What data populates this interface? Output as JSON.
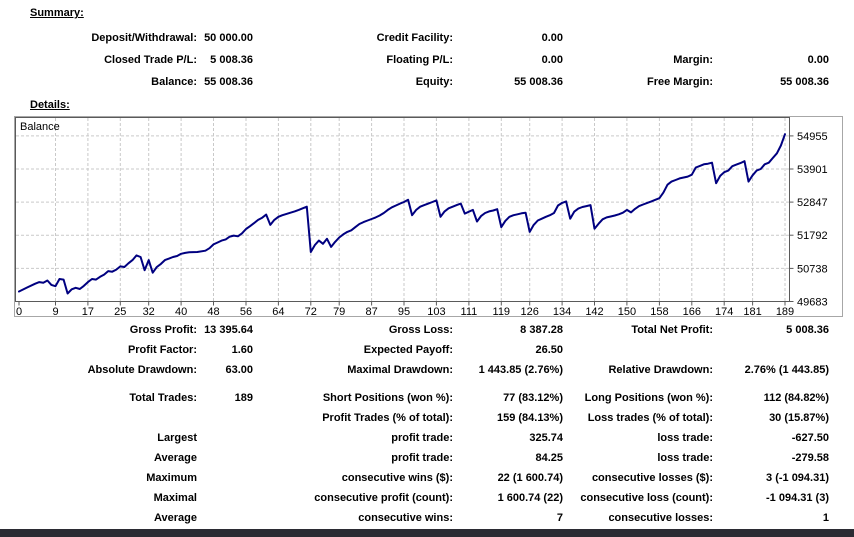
{
  "summary": {
    "heading": "Summary:",
    "rows": [
      [
        "Deposit/Withdrawal:",
        "50 000.00",
        "Credit Facility:",
        "0.00",
        "",
        ""
      ],
      [
        "Closed Trade P/L:",
        "5 008.36",
        "Floating P/L:",
        "0.00",
        "Margin:",
        "0.00"
      ],
      [
        "Balance:",
        "55 008.36",
        "Equity:",
        "55 008.36",
        "Free Margin:",
        "55 008.36"
      ]
    ]
  },
  "details": {
    "heading": "Details:",
    "spacer_after_row_index": 2,
    "rows": [
      [
        "Gross Profit:",
        "13 395.64",
        "Gross Loss:",
        "8 387.28",
        "Total Net Profit:",
        "5 008.36"
      ],
      [
        "Profit Factor:",
        "1.60",
        "Expected Payoff:",
        "26.50",
        "",
        ""
      ],
      [
        "Absolute Drawdown:",
        "63.00",
        "Maximal Drawdown:",
        "1 443.85 (2.76%)",
        "Relative Drawdown:",
        "2.76% (1 443.85)"
      ],
      [
        "Total Trades:",
        "189",
        "Short Positions (won %):",
        "77 (83.12%)",
        "Long Positions (won %):",
        "112 (84.82%)"
      ],
      [
        "",
        "",
        "Profit Trades (% of total):",
        "159 (84.13%)",
        "Loss trades (% of total):",
        "30 (15.87%)"
      ],
      [
        "Largest",
        "",
        "profit trade:",
        "325.74",
        "loss trade:",
        "-627.50"
      ],
      [
        "Average",
        "",
        "profit trade:",
        "84.25",
        "loss trade:",
        "-279.58"
      ],
      [
        "Maximum",
        "",
        "consecutive wins ($):",
        "22 (1 600.74)",
        "consecutive losses ($):",
        "3 (-1 094.31)"
      ],
      [
        "Maximal",
        "",
        "consecutive profit (count):",
        "1 600.74 (22)",
        "consecutive loss (count):",
        "-1 094.31 (3)"
      ],
      [
        "Average",
        "",
        "consecutive wins:",
        "7",
        "consecutive losses:",
        "1"
      ]
    ]
  },
  "chart_data": {
    "type": "line",
    "title": "Balance",
    "xlabel": "",
    "ylabel": "",
    "grid": "dashed",
    "legend_position": "none",
    "line_color": "#000080",
    "xlim": [
      0,
      189
    ],
    "ylim": [
      49683,
      55540
    ],
    "x_ticks": [
      0,
      9,
      17,
      25,
      32,
      40,
      48,
      56,
      64,
      72,
      79,
      87,
      95,
      103,
      111,
      119,
      126,
      134,
      142,
      150,
      158,
      166,
      174,
      181,
      189
    ],
    "y_ticks": [
      49683,
      50738,
      51792,
      52847,
      53901,
      54955
    ],
    "series": [
      {
        "name": "Balance",
        "points": [
          [
            0,
            50000
          ],
          [
            2,
            50130
          ],
          [
            4,
            50250
          ],
          [
            5,
            50300
          ],
          [
            6,
            50280
          ],
          [
            7,
            50350
          ],
          [
            8,
            50210
          ],
          [
            9,
            50170
          ],
          [
            10,
            50400
          ],
          [
            11,
            50380
          ],
          [
            12,
            49937
          ],
          [
            13,
            50070
          ],
          [
            14,
            50120
          ],
          [
            15,
            50080
          ],
          [
            16,
            50180
          ],
          [
            17,
            50300
          ],
          [
            18,
            50400
          ],
          [
            19,
            50380
          ],
          [
            20,
            50470
          ],
          [
            21,
            50540
          ],
          [
            22,
            50650
          ],
          [
            23,
            50630
          ],
          [
            24,
            50700
          ],
          [
            25,
            50800
          ],
          [
            26,
            50780
          ],
          [
            27,
            50900
          ],
          [
            28,
            51000
          ],
          [
            29,
            51150
          ],
          [
            30,
            51100
          ],
          [
            31,
            50680
          ],
          [
            32,
            51000
          ],
          [
            33,
            50600
          ],
          [
            34,
            50780
          ],
          [
            35,
            50880
          ],
          [
            36,
            51000
          ],
          [
            37,
            51050
          ],
          [
            38,
            51100
          ],
          [
            39,
            51130
          ],
          [
            40,
            51200
          ],
          [
            41,
            51230
          ],
          [
            42,
            51250
          ],
          [
            44,
            51260
          ],
          [
            46,
            51300
          ],
          [
            47,
            51380
          ],
          [
            48,
            51500
          ],
          [
            49,
            51560
          ],
          [
            50,
            51620
          ],
          [
            51,
            51660
          ],
          [
            52,
            51750
          ],
          [
            53,
            51780
          ],
          [
            54,
            51760
          ],
          [
            55,
            51850
          ],
          [
            56,
            51990
          ],
          [
            57,
            52080
          ],
          [
            58,
            52180
          ],
          [
            59,
            52280
          ],
          [
            60,
            52350
          ],
          [
            61,
            52450
          ],
          [
            62,
            52120
          ],
          [
            63,
            52280
          ],
          [
            64,
            52380
          ],
          [
            65,
            52430
          ],
          [
            66,
            52470
          ],
          [
            67,
            52510
          ],
          [
            68,
            52550
          ],
          [
            69,
            52600
          ],
          [
            70,
            52650
          ],
          [
            71,
            52700
          ],
          [
            72,
            51260
          ],
          [
            73,
            51480
          ],
          [
            74,
            51620
          ],
          [
            75,
            51520
          ],
          [
            76,
            51680
          ],
          [
            77,
            51420
          ],
          [
            78,
            51580
          ],
          [
            79,
            51720
          ],
          [
            80,
            51820
          ],
          [
            81,
            51900
          ],
          [
            82,
            51950
          ],
          [
            83,
            52050
          ],
          [
            84,
            52150
          ],
          [
            85,
            52210
          ],
          [
            86,
            52260
          ],
          [
            87,
            52310
          ],
          [
            88,
            52360
          ],
          [
            89,
            52420
          ],
          [
            90,
            52500
          ],
          [
            91,
            52600
          ],
          [
            92,
            52680
          ],
          [
            93,
            52740
          ],
          [
            94,
            52800
          ],
          [
            95,
            52850
          ],
          [
            96,
            52920
          ],
          [
            97,
            52430
          ],
          [
            98,
            52600
          ],
          [
            99,
            52700
          ],
          [
            100,
            52750
          ],
          [
            101,
            52800
          ],
          [
            102,
            52850
          ],
          [
            103,
            52900
          ],
          [
            104,
            52380
          ],
          [
            105,
            52550
          ],
          [
            106,
            52650
          ],
          [
            107,
            52700
          ],
          [
            108,
            52750
          ],
          [
            109,
            52800
          ],
          [
            110,
            52480
          ],
          [
            111,
            52540
          ],
          [
            112,
            52600
          ],
          [
            113,
            52230
          ],
          [
            114,
            52400
          ],
          [
            115,
            52500
          ],
          [
            116,
            52550
          ],
          [
            117,
            52580
          ],
          [
            118,
            52620
          ],
          [
            119,
            52050
          ],
          [
            120,
            52250
          ],
          [
            121,
            52380
          ],
          [
            122,
            52430
          ],
          [
            123,
            52460
          ],
          [
            124,
            52490
          ],
          [
            125,
            52510
          ],
          [
            126,
            51900
          ],
          [
            127,
            52120
          ],
          [
            128,
            52260
          ],
          [
            129,
            52320
          ],
          [
            130,
            52380
          ],
          [
            131,
            52430
          ],
          [
            132,
            52500
          ],
          [
            133,
            52740
          ],
          [
            134,
            52820
          ],
          [
            135,
            52870
          ],
          [
            136,
            52320
          ],
          [
            137,
            52540
          ],
          [
            138,
            52640
          ],
          [
            139,
            52690
          ],
          [
            140,
            52720
          ],
          [
            141,
            52750
          ],
          [
            142,
            52000
          ],
          [
            143,
            52160
          ],
          [
            144,
            52300
          ],
          [
            145,
            52360
          ],
          [
            146,
            52390
          ],
          [
            147,
            52420
          ],
          [
            148,
            52460
          ],
          [
            149,
            52510
          ],
          [
            150,
            52600
          ],
          [
            151,
            52520
          ],
          [
            152,
            52630
          ],
          [
            153,
            52720
          ],
          [
            154,
            52770
          ],
          [
            155,
            52820
          ],
          [
            156,
            52870
          ],
          [
            157,
            52920
          ],
          [
            158,
            52970
          ],
          [
            159,
            53150
          ],
          [
            160,
            53400
          ],
          [
            161,
            53500
          ],
          [
            162,
            53550
          ],
          [
            163,
            53600
          ],
          [
            164,
            53630
          ],
          [
            165,
            53660
          ],
          [
            166,
            53720
          ],
          [
            167,
            53950
          ],
          [
            168,
            54000
          ],
          [
            169,
            54050
          ],
          [
            170,
            54070
          ],
          [
            171,
            54100
          ],
          [
            172,
            53450
          ],
          [
            173,
            53680
          ],
          [
            174,
            53800
          ],
          [
            175,
            53850
          ],
          [
            176,
            53990
          ],
          [
            177,
            54040
          ],
          [
            178,
            54090
          ],
          [
            179,
            54150
          ],
          [
            180,
            53500
          ],
          [
            181,
            53700
          ],
          [
            182,
            53850
          ],
          [
            183,
            53900
          ],
          [
            184,
            54050
          ],
          [
            185,
            54100
          ],
          [
            186,
            54250
          ],
          [
            187,
            54400
          ],
          [
            188,
            54650
          ],
          [
            189,
            55008
          ]
        ]
      }
    ]
  }
}
